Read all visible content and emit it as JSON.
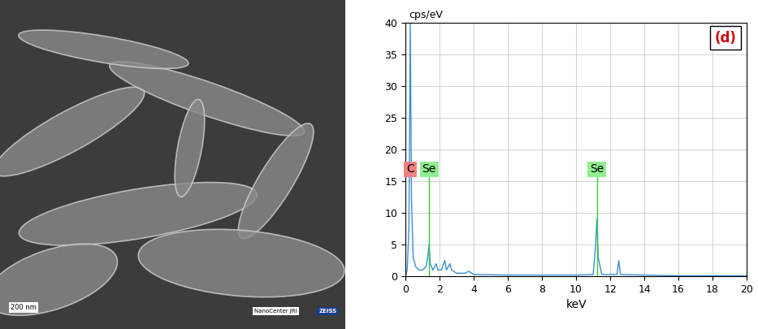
{
  "chart_data": {
    "type": "line",
    "panel_label": "(d)",
    "ylabel": "cps/eV",
    "xlabel": "keV",
    "x": [
      0,
      0.1,
      0.2,
      0.28,
      0.35,
      0.45,
      0.6,
      0.8,
      1.0,
      1.2,
      1.3,
      1.38,
      1.45,
      1.6,
      1.8,
      1.9,
      2.1,
      2.3,
      2.4,
      2.6,
      2.7,
      3.0,
      3.5,
      3.7,
      4,
      6,
      8,
      10,
      11.0,
      11.15,
      11.22,
      11.3,
      11.5,
      12.4,
      12.5,
      12.6,
      14,
      16,
      18,
      20
    ],
    "values": [
      0,
      1,
      8,
      40,
      12,
      3,
      1.5,
      1,
      1,
      1.5,
      3,
      5,
      2,
      1,
      2,
      1,
      1,
      2.5,
      1,
      2,
      1,
      0.5,
      0.5,
      0.8,
      0.3,
      0.2,
      0.2,
      0.2,
      0.3,
      5,
      9,
      3,
      0.3,
      0.3,
      2.5,
      0.3,
      0.2,
      0.1,
      0.1,
      0.1
    ],
    "color": "#3a8fd0",
    "peaks": [
      {
        "label": "C",
        "x": 0.28,
        "height": 16,
        "color": "#f08080"
      },
      {
        "label": "Se",
        "x": 1.38,
        "height": 16,
        "color": "#90ee90"
      },
      {
        "label": "Se",
        "x": 11.22,
        "height": 16,
        "color": "#90ee90"
      }
    ],
    "xlim": [
      0,
      20
    ],
    "xticks": [
      0,
      2,
      4,
      6,
      8,
      10,
      12,
      14,
      16,
      18,
      20
    ],
    "ylim": [
      0,
      40
    ],
    "yticks": [
      0,
      5,
      10,
      15,
      20,
      25,
      30,
      35,
      40
    ],
    "grid": true
  },
  "image": {
    "scale_bar": "200 nm",
    "logo": [
      "NanoCenter JRI",
      "ZEISS"
    ]
  }
}
